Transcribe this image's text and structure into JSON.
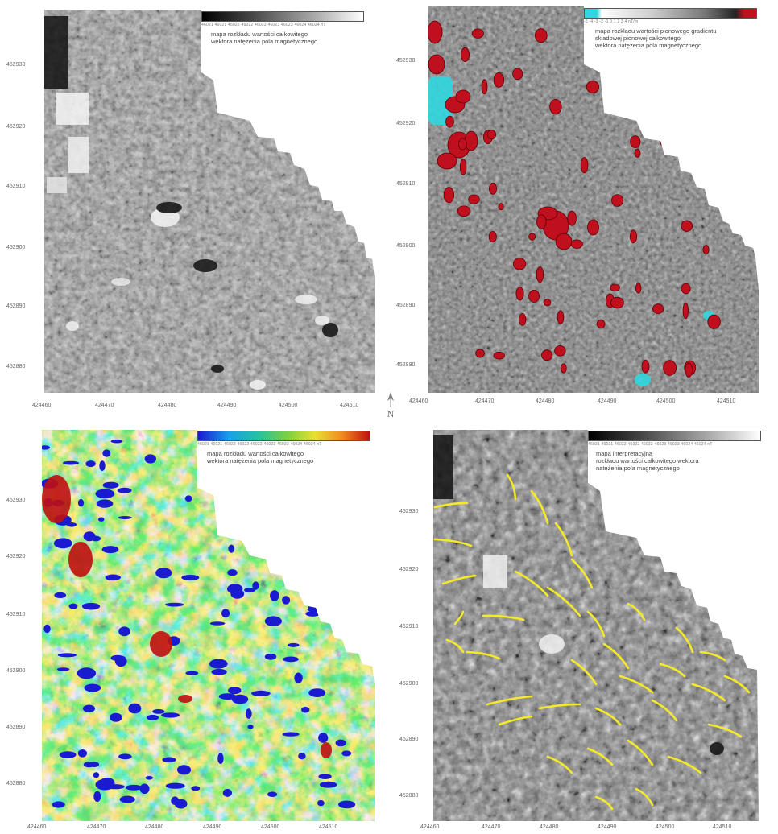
{
  "panels": [
    {
      "id": "tl",
      "legend_text": [
        "mapa rozkładu wartości całkowitego",
        "wektora natężenia pola magnetycznego"
      ],
      "legend_ticks": "46021 46021 46022 46022 46022 46023 46023 46024 46024 nT",
      "y_ticks": [
        "452930",
        "452920",
        "452910",
        "452900",
        "452890",
        "452880"
      ],
      "x_ticks": [
        "424460",
        "424470",
        "424480",
        "424490",
        "424500",
        "424510"
      ]
    },
    {
      "id": "tr",
      "legend_text": [
        "mapa rozkładu wartości pionowego gradientu",
        "składowej pionowej całkowitego",
        "wektora natężenia pola magnetycznego"
      ],
      "legend_ticks": "-5 -4 -3 -2 -1 0 1 2 3 4 nT/m",
      "y_ticks": [
        "452930",
        "452920",
        "452910",
        "452900",
        "452890",
        "452880"
      ],
      "x_ticks": [
        "424460",
        "424470",
        "424480",
        "424490",
        "424500",
        "424510"
      ]
    },
    {
      "id": "bl",
      "legend_text": [
        "mapa rozkładu wartości całkowitego",
        "wektora natężenia pola magnetycznego"
      ],
      "legend_ticks": "46021 46021 46022 46022 46022 46023 46023 46024 46024 nT",
      "y_ticks": [
        "452930",
        "452920",
        "452910",
        "452900",
        "452890",
        "452880"
      ],
      "x_ticks": [
        "424460",
        "424470",
        "424480",
        "424490",
        "424500",
        "424510"
      ]
    },
    {
      "id": "br",
      "legend_text": [
        "mapa interpretacyjna",
        "rozkładu wartości całkowitego wektora",
        "natężenia pola magnetycznego"
      ],
      "legend_ticks": "46021 46021 46022 46022 46022 46023 46023 46024 46024 nT",
      "y_ticks": [
        "452930",
        "452920",
        "452910",
        "452900",
        "452890",
        "452880"
      ],
      "x_ticks": [
        "424460",
        "424470",
        "424480",
        "424490",
        "424500",
        "424510"
      ]
    }
  ],
  "north_label": "N",
  "colors": {
    "gray_low": "#222222",
    "gray_high": "#e8e8e8",
    "anomaly_red": "#c0101e",
    "anomaly_cyan": "#2fd8e0",
    "line_yellow": "#f5ea2a",
    "jet": [
      "#1a1ad0",
      "#1aa0e8",
      "#27c0a0",
      "#7ad040",
      "#e8e030",
      "#f08a20",
      "#c01010"
    ]
  }
}
